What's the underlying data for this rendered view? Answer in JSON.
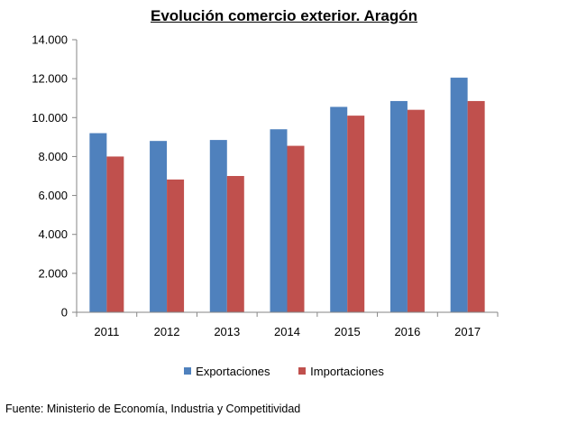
{
  "chart_data": {
    "type": "bar",
    "title": "Evolución comercio exterior. Aragón",
    "categories": [
      "2011",
      "2012",
      "2013",
      "2014",
      "2015",
      "2016",
      "2017"
    ],
    "series": [
      {
        "name": "Exportaciones",
        "color": "#4f81bd",
        "values": [
          9200,
          8800,
          8850,
          9400,
          10550,
          10850,
          12050
        ]
      },
      {
        "name": "Importaciones",
        "color": "#c0504d",
        "values": [
          8000,
          6820,
          7000,
          8550,
          10100,
          10400,
          10850
        ]
      }
    ],
    "ylim": [
      0,
      14000
    ],
    "yticks": [
      "0",
      "2.000",
      "4.000",
      "6.000",
      "8.000",
      "10.000",
      "12.000",
      "14.000"
    ],
    "xlabel": "",
    "ylabel": "",
    "grid": false,
    "legend_position": "bottom"
  },
  "source": "Fuente: Ministerio de Economía, Industria y Competitividad"
}
